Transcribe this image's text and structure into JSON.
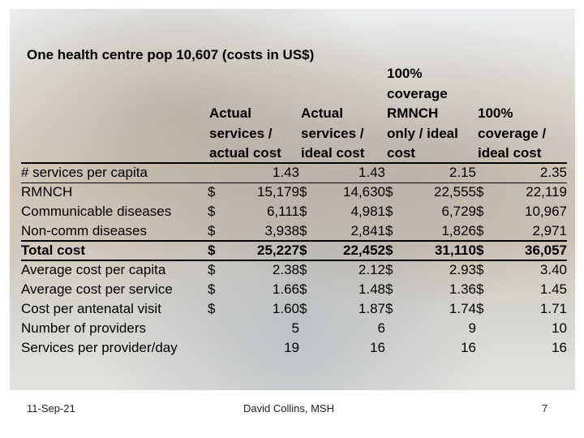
{
  "title": "One health centre pop 10,607 (costs in US$)",
  "columns": [
    {
      "lines": [
        "",
        "",
        "Actual",
        "services /",
        "actual cost"
      ]
    },
    {
      "lines": [
        "",
        "",
        "Actual",
        "services /",
        "ideal cost"
      ]
    },
    {
      "lines": [
        "100%",
        "coverage",
        "RMNCH",
        "only / ideal",
        "cost"
      ]
    },
    {
      "lines": [
        "",
        "",
        "100%",
        "coverage /",
        "ideal cost"
      ]
    }
  ],
  "rows": [
    {
      "label": "# services per capita",
      "bold": false,
      "cells": [
        {
          "cur": "",
          "val": "1.43"
        },
        {
          "cur": "",
          "val": "1.43"
        },
        {
          "cur": "",
          "val": "2.15"
        },
        {
          "cur": "",
          "val": "2.35"
        }
      ]
    },
    {
      "label": "RMNCH",
      "bold": false,
      "cells": [
        {
          "cur": "$",
          "val": "15,179"
        },
        {
          "cur": "$",
          "val": "14,630"
        },
        {
          "cur": "$",
          "val": "22,555"
        },
        {
          "cur": "$",
          "val": "22,119"
        }
      ]
    },
    {
      "label": "Communicable diseases",
      "bold": false,
      "cells": [
        {
          "cur": "$",
          "val": "6,111"
        },
        {
          "cur": "$",
          "val": "4,981"
        },
        {
          "cur": "$",
          "val": "6,729"
        },
        {
          "cur": "$",
          "val": "10,967"
        }
      ]
    },
    {
      "label": "Non-comm diseases",
      "bold": false,
      "cells": [
        {
          "cur": "$",
          "val": "3,938"
        },
        {
          "cur": "$",
          "val": "2,841"
        },
        {
          "cur": "$",
          "val": "1,826"
        },
        {
          "cur": "$",
          "val": "2,971"
        }
      ]
    },
    {
      "label": "Total cost",
      "bold": true,
      "cells": [
        {
          "cur": "$",
          "val": "25,227"
        },
        {
          "cur": "$",
          "val": "22,452"
        },
        {
          "cur": "$",
          "val": "31,110"
        },
        {
          "cur": "$",
          "val": "36,057"
        }
      ]
    },
    {
      "label": "Average cost per capita",
      "bold": false,
      "cells": [
        {
          "cur": "$",
          "val": "2.38"
        },
        {
          "cur": "$",
          "val": "2.12"
        },
        {
          "cur": "$",
          "val": "2.93"
        },
        {
          "cur": "$",
          "val": "3.40"
        }
      ]
    },
    {
      "label": "Average cost per service",
      "bold": false,
      "cells": [
        {
          "cur": "$",
          "val": "1.66"
        },
        {
          "cur": "$",
          "val": "1.48"
        },
        {
          "cur": "$",
          "val": "1.36"
        },
        {
          "cur": "$",
          "val": "1.45"
        }
      ]
    },
    {
      "label": "Cost per antenatal visit",
      "bold": false,
      "cells": [
        {
          "cur": "$",
          "val": "1.60"
        },
        {
          "cur": "$",
          "val": "1.87"
        },
        {
          "cur": "$",
          "val": "1.74"
        },
        {
          "cur": "$",
          "val": "1.71"
        }
      ]
    },
    {
      "label": "Number of providers",
      "bold": false,
      "cells": [
        {
          "cur": "",
          "val": "5"
        },
        {
          "cur": "",
          "val": "6"
        },
        {
          "cur": "",
          "val": "9"
        },
        {
          "cur": "",
          "val": "10"
        }
      ]
    },
    {
      "label": "Services per provider/day",
      "bold": false,
      "cells": [
        {
          "cur": "",
          "val": "19"
        },
        {
          "cur": "",
          "val": "16"
        },
        {
          "cur": "",
          "val": "16"
        },
        {
          "cur": "",
          "val": "16"
        }
      ]
    }
  ],
  "footer": {
    "date": "11-Sep-21",
    "author": "David Collins, MSH",
    "page": "7"
  }
}
